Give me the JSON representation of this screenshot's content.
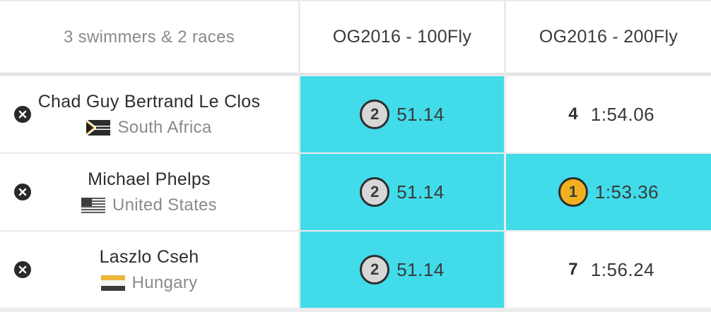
{
  "header": {
    "summary": "3 swimmers & 2 races",
    "races": [
      "OG2016 - 100Fly",
      "OG2016 - 200Fly"
    ]
  },
  "rows": [
    {
      "name": "Chad Guy Bertrand Le Clos",
      "country": "South Africa",
      "flag_icon": "south-africa-flag-icon",
      "results": [
        {
          "rank": "2",
          "time": "51.14",
          "medal": "silver",
          "highlighted": true
        },
        {
          "rank": "4",
          "time": "1:54.06",
          "medal": "none",
          "highlighted": false
        }
      ]
    },
    {
      "name": "Michael Phelps",
      "country": "United States",
      "flag_icon": "united-states-flag-icon",
      "results": [
        {
          "rank": "2",
          "time": "51.14",
          "medal": "silver",
          "highlighted": true
        },
        {
          "rank": "1",
          "time": "1:53.36",
          "medal": "gold",
          "highlighted": true
        }
      ]
    },
    {
      "name": "Laszlo Cseh",
      "country": "Hungary",
      "flag_icon": "hungary-flag-icon",
      "results": [
        {
          "rank": "2",
          "time": "51.14",
          "medal": "silver",
          "highlighted": true
        },
        {
          "rank": "7",
          "time": "1:56.24",
          "medal": "none",
          "highlighted": false
        }
      ]
    }
  ],
  "colors": {
    "highlight": "#41dbe9",
    "gold": "#f1b01f",
    "silver": "#d7d7d7",
    "grid_line": "#ebebeb"
  }
}
